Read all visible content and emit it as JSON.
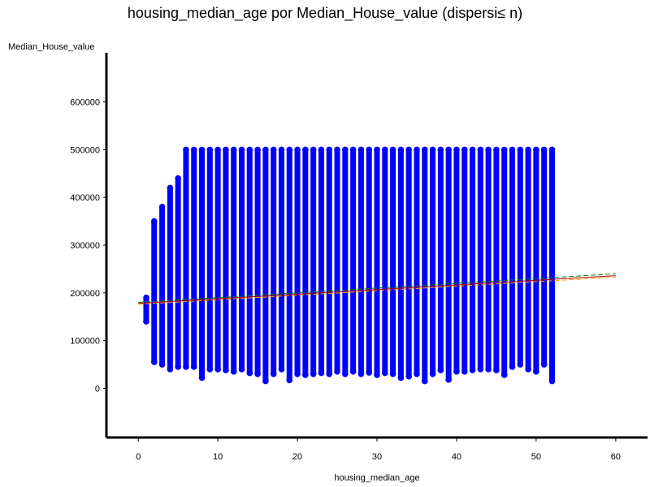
{
  "chart_data": {
    "type": "scatter",
    "title": "housing_median_age  por  Median_House_value  (dispersi≤ n)",
    "xlabel": "housing_median_age",
    "ylabel": "Median_House_value",
    "xlim": [
      -4,
      64
    ],
    "ylim": [
      -103000,
      703000
    ],
    "x_ticks": [
      0,
      10,
      20,
      30,
      40,
      50,
      60
    ],
    "y_ticks": [
      0,
      100000,
      200000,
      300000,
      400000,
      500000,
      600000
    ],
    "grid": false,
    "legend": "none",
    "series": [
      {
        "type": "scatter",
        "color": "#0000ff",
        "x_values": [
          1,
          2,
          3,
          4,
          5,
          6,
          7,
          8,
          9,
          10,
          11,
          12,
          13,
          14,
          15,
          16,
          17,
          18,
          19,
          20,
          21,
          22,
          23,
          24,
          25,
          26,
          27,
          28,
          29,
          30,
          31,
          32,
          33,
          34,
          35,
          36,
          37,
          38,
          39,
          40,
          41,
          42,
          43,
          44,
          45,
          46,
          47,
          48,
          49,
          50,
          51,
          52
        ],
        "y_min": [
          140000,
          55000,
          50000,
          40000,
          45000,
          45000,
          45000,
          22000,
          40000,
          40000,
          38000,
          35000,
          40000,
          32000,
          30000,
          15000,
          30000,
          40000,
          17000,
          30000,
          28000,
          30000,
          32000,
          30000,
          35000,
          30000,
          35000,
          30000,
          33000,
          28000,
          32000,
          30000,
          22000,
          25000,
          30000,
          15000,
          30000,
          38000,
          18000,
          35000,
          35000,
          38000,
          40000,
          40000,
          38000,
          28000,
          45000,
          50000,
          40000,
          35000,
          50000,
          15000
        ],
        "y_max": [
          190000,
          350000,
          380000,
          420000,
          440000,
          500000,
          500000,
          500000,
          500000,
          500000,
          500000,
          500000,
          500000,
          500000,
          500000,
          500000,
          500000,
          500000,
          500000,
          500000,
          500000,
          500000,
          500000,
          500000,
          500000,
          500000,
          500000,
          500000,
          500000,
          500000,
          500000,
          500000,
          500000,
          500000,
          500000,
          500000,
          500000,
          500000,
          500000,
          500000,
          500000,
          500000,
          500000,
          500000,
          500000,
          500000,
          500000,
          500000,
          500000,
          500000,
          500000,
          500000
        ]
      },
      {
        "type": "line",
        "color": "#008000",
        "dash": "dashed",
        "x": [
          0,
          60
        ],
        "y": [
          180000,
          240000
        ]
      },
      {
        "type": "line",
        "color": "#b40000",
        "x": [
          0,
          60
        ],
        "y": [
          178000,
          236000
        ]
      },
      {
        "type": "line",
        "color": "#ff9900",
        "dash": "dashed",
        "x": [
          0,
          60
        ],
        "y": [
          176000,
          233000
        ]
      }
    ]
  }
}
